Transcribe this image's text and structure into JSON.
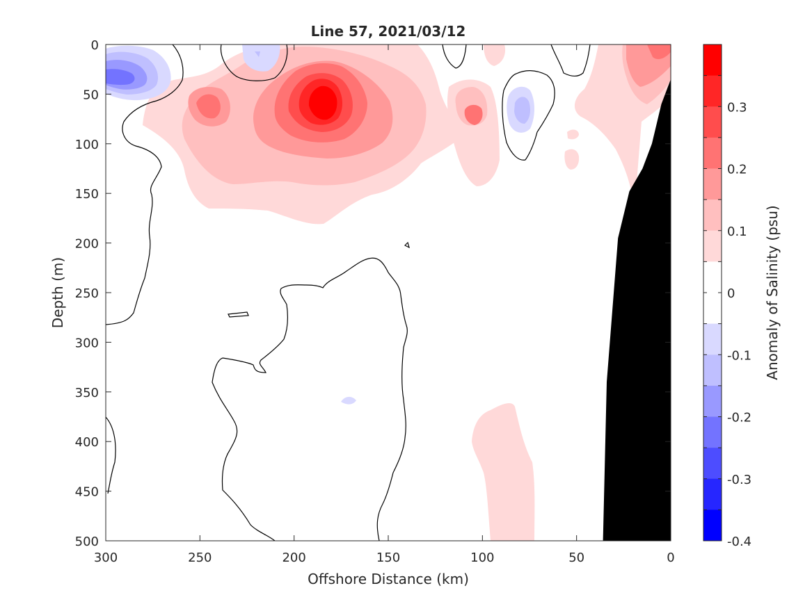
{
  "chart_data": {
    "type": "contour",
    "title": "Line 57, 2021/03/12",
    "xlabel": "Offshore Distance (km)",
    "ylabel": "Depth (m)",
    "colorbar_label": "Anomaly of Salinity (psu)",
    "xlim": [
      300,
      0
    ],
    "ylim": [
      0,
      500
    ],
    "x_reversed": true,
    "y_reversed": true,
    "x_ticks": [
      300,
      250,
      200,
      150,
      100,
      50,
      0
    ],
    "y_ticks": [
      0,
      50,
      100,
      150,
      200,
      250,
      300,
      350,
      400,
      450,
      500
    ],
    "colorbar": {
      "range": [
        -0.4,
        0.4
      ],
      "step": 0.05,
      "ticks": [
        0.3,
        0.2,
        0.1,
        0,
        -0.1,
        -0.2,
        -0.3,
        -0.4
      ],
      "colors": [
        "#ff0000",
        "#ff2626",
        "#ff4d4d",
        "#ff7373",
        "#ff9999",
        "#ffbfbf",
        "#ffd9d9",
        "#ffffff",
        "#ffffff",
        "#d9d9ff",
        "#bfbfff",
        "#9999ff",
        "#7373ff",
        "#4d4dff",
        "#2626ff",
        "#0000ff"
      ]
    },
    "zero_contour_color": "#000000",
    "bathymetry_color": "#000000",
    "bathymetry_outline": [
      [
        0,
        35
      ],
      [
        5,
        60
      ],
      [
        10,
        100
      ],
      [
        15,
        125
      ],
      [
        22,
        148
      ],
      [
        28,
        195
      ],
      [
        34,
        340
      ],
      [
        36,
        500
      ],
      [
        0,
        500
      ]
    ],
    "anomaly_features": [
      {
        "x": 292,
        "y": 35,
        "peak": -0.2,
        "label": "negative core near 300 km"
      },
      {
        "x": 220,
        "y": 10,
        "peak": -0.1,
        "label": "small negative patch"
      },
      {
        "x": 245,
        "y": 60,
        "peak": 0.15,
        "label": "positive patch"
      },
      {
        "x": 183,
        "y": 57,
        "peak": 0.35,
        "label": "strong positive core"
      },
      {
        "x": 138,
        "y": 20,
        "peak": 0.15,
        "label": "positive patch"
      },
      {
        "x": 105,
        "y": 70,
        "peak": 0.15,
        "label": "positive patch"
      },
      {
        "x": 80,
        "y": 58,
        "peak": -0.1,
        "label": "negative patch"
      },
      {
        "x": 15,
        "y": 25,
        "peak": 0.2,
        "label": "nearshore positive"
      },
      {
        "x": 82,
        "y": 440,
        "peak": 0.1,
        "label": "deep weak positive"
      },
      {
        "x": 170,
        "y": 358,
        "peak": -0.1,
        "label": "deep weak negative"
      }
    ]
  }
}
